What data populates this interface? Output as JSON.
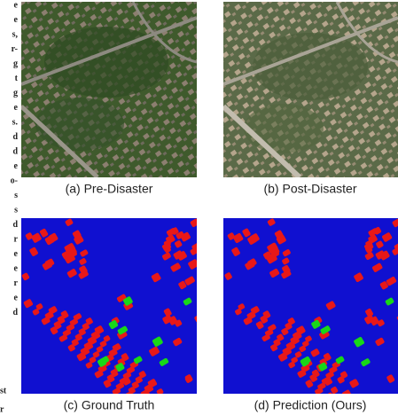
{
  "figure": {
    "panels": [
      {
        "caption": "(a) Pre-Disaster"
      },
      {
        "caption": "(b) Post-Disaster"
      },
      {
        "caption": "(c) Ground Truth"
      },
      {
        "caption": "(d) Prediction (Ours)"
      }
    ],
    "margin_fragments": [
      "e",
      "e",
      "s,",
      "r-",
      "g",
      "t",
      "g",
      "e",
      "s.",
      "d",
      "d",
      "e",
      "o-",
      "s",
      "s",
      "d",
      "r",
      "e",
      "e",
      "r",
      "e",
      "d"
    ],
    "margin_bottom": [
      "st",
      "r"
    ]
  }
}
